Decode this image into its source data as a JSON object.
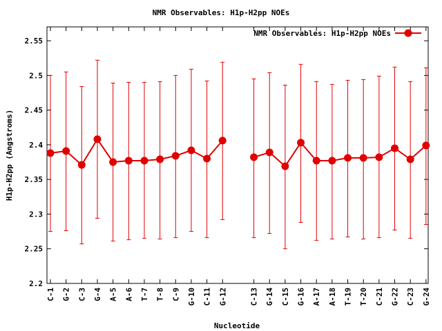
{
  "chart_data": {
    "type": "line",
    "title": "NMR Observables: H1p-H2pp NOEs",
    "xlabel": "Nucleotide",
    "ylabel": "H1p-H2pp (Angstroms)",
    "ylim": [
      2.2,
      2.57
    ],
    "yticks": [
      "2.2",
      "2.25",
      "2.3",
      "2.35",
      "2.4",
      "2.45",
      "2.5",
      "2.55"
    ],
    "legend_position": "top-right",
    "grid": false,
    "color": "#e00000",
    "series": [
      {
        "name": "NMR Observables: H1p-H2pp NOEs",
        "segments": [
          [
            {
              "label": "C-1",
              "slot": 0,
              "y": 2.388,
              "ylow": 2.275,
              "yhigh": 2.5
            },
            {
              "label": "G-2",
              "slot": 1,
              "y": 2.391,
              "ylow": 2.276,
              "yhigh": 2.505
            },
            {
              "label": "C-3",
              "slot": 2,
              "y": 2.371,
              "ylow": 2.257,
              "yhigh": 2.484
            },
            {
              "label": "G-4",
              "slot": 3,
              "y": 2.408,
              "ylow": 2.294,
              "yhigh": 2.522
            },
            {
              "label": "A-5",
              "slot": 4,
              "y": 2.375,
              "ylow": 2.261,
              "yhigh": 2.489
            },
            {
              "label": "A-6",
              "slot": 5,
              "y": 2.377,
              "ylow": 2.263,
              "yhigh": 2.49
            },
            {
              "label": "T-7",
              "slot": 6,
              "y": 2.377,
              "ylow": 2.265,
              "yhigh": 2.49
            },
            {
              "label": "T-8",
              "slot": 7,
              "y": 2.379,
              "ylow": 2.264,
              "yhigh": 2.491
            },
            {
              "label": "C-9",
              "slot": 8,
              "y": 2.384,
              "ylow": 2.266,
              "yhigh": 2.5
            },
            {
              "label": "G-10",
              "slot": 9,
              "y": 2.392,
              "ylow": 2.275,
              "yhigh": 2.509
            },
            {
              "label": "C-11",
              "slot": 10,
              "y": 2.38,
              "ylow": 2.266,
              "yhigh": 2.492
            },
            {
              "label": "G-12",
              "slot": 11,
              "y": 2.406,
              "ylow": 2.292,
              "yhigh": 2.519
            }
          ],
          [
            {
              "label": "C-13",
              "slot": 13,
              "y": 2.382,
              "ylow": 2.266,
              "yhigh": 2.495
            },
            {
              "label": "G-14",
              "slot": 14,
              "y": 2.389,
              "ylow": 2.272,
              "yhigh": 2.504
            },
            {
              "label": "C-15",
              "slot": 15,
              "y": 2.369,
              "ylow": 2.25,
              "yhigh": 2.486
            },
            {
              "label": "G-16",
              "slot": 16,
              "y": 2.403,
              "ylow": 2.288,
              "yhigh": 2.516
            },
            {
              "label": "A-17",
              "slot": 17,
              "y": 2.377,
              "ylow": 2.262,
              "yhigh": 2.491
            },
            {
              "label": "A-18",
              "slot": 18,
              "y": 2.377,
              "ylow": 2.264,
              "yhigh": 2.487
            },
            {
              "label": "T-19",
              "slot": 19,
              "y": 2.381,
              "ylow": 2.267,
              "yhigh": 2.493
            },
            {
              "label": "T-20",
              "slot": 20,
              "y": 2.381,
              "ylow": 2.264,
              "yhigh": 2.494
            },
            {
              "label": "C-21",
              "slot": 21,
              "y": 2.382,
              "ylow": 2.266,
              "yhigh": 2.499
            },
            {
              "label": "G-22",
              "slot": 22,
              "y": 2.395,
              "ylow": 2.277,
              "yhigh": 2.512
            },
            {
              "label": "C-23",
              "slot": 23,
              "y": 2.379,
              "ylow": 2.265,
              "yhigh": 2.491
            },
            {
              "label": "G-24",
              "slot": 24,
              "y": 2.399,
              "ylow": 2.285,
              "yhigh": 2.511
            }
          ]
        ]
      }
    ]
  }
}
